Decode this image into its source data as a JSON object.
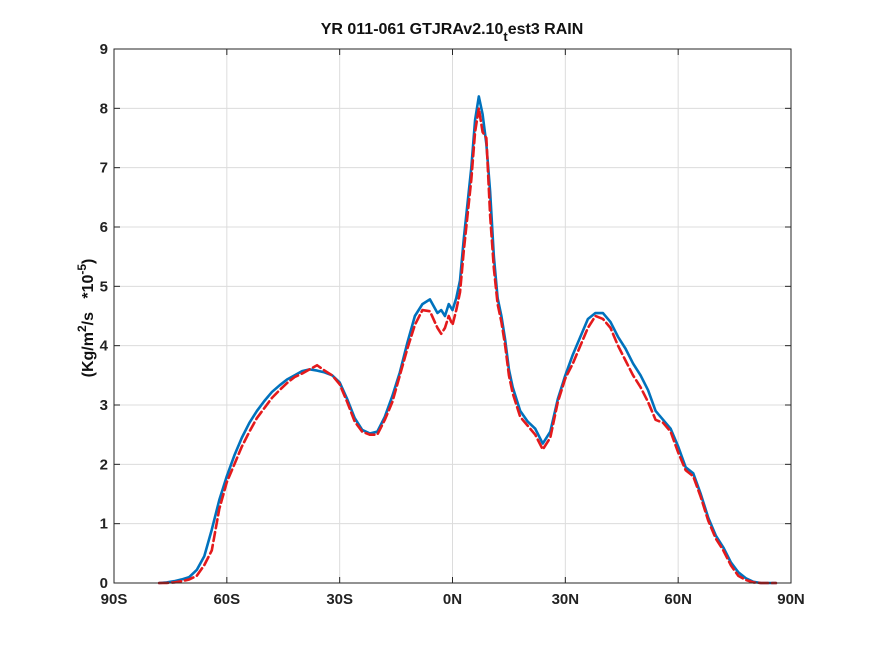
{
  "chart_data": {
    "type": "line",
    "title_parts": {
      "main": "YR 011-061 GTJRAv2.10",
      "sub": "t",
      "tail": "est3 RAIN"
    },
    "ylabel_parts": {
      "pre": "(Kg/m",
      "sup1": "2",
      "mid": "/s   *10",
      "sup2": "-5",
      "post": ")"
    },
    "xlabel": "",
    "xlim": [
      -90,
      90
    ],
    "ylim": [
      0,
      9
    ],
    "x_ticks": [
      -90,
      -60,
      -30,
      0,
      30,
      60,
      90
    ],
    "x_tick_labels": [
      "90S",
      "60S",
      "30S",
      "0N",
      "30N",
      "60N",
      "90N"
    ],
    "y_ticks": [
      0,
      1,
      2,
      3,
      4,
      5,
      6,
      7,
      8,
      9
    ],
    "y_tick_labels": [
      "0",
      "1",
      "2",
      "3",
      "4",
      "5",
      "6",
      "7",
      "8",
      "9"
    ],
    "grid": true,
    "series": [
      {
        "color": "#0072BD",
        "style": "solid",
        "x": [
          -78,
          -76,
          -74,
          -72,
          -70,
          -68,
          -66,
          -64,
          -62,
          -60,
          -58,
          -56,
          -54,
          -52,
          -50,
          -48,
          -46,
          -44,
          -42,
          -40,
          -38,
          -36,
          -34,
          -32,
          -30,
          -28,
          -26,
          -24,
          -22,
          -20,
          -18,
          -16,
          -14,
          -12,
          -10,
          -8,
          -6,
          -4,
          -3,
          -2,
          -1,
          0,
          1,
          2,
          3,
          4,
          5,
          6,
          7,
          8,
          9,
          10,
          11,
          12,
          13,
          14,
          15,
          16,
          18,
          20,
          22,
          24,
          26,
          28,
          30,
          32,
          34,
          36,
          38,
          40,
          42,
          44,
          46,
          48,
          50,
          52,
          54,
          56,
          58,
          60,
          62,
          64,
          66,
          68,
          70,
          72,
          74,
          76,
          78,
          80,
          82,
          84,
          86
        ],
        "y": [
          0.0,
          0.01,
          0.03,
          0.06,
          0.1,
          0.22,
          0.45,
          0.9,
          1.4,
          1.8,
          2.15,
          2.45,
          2.7,
          2.9,
          3.07,
          3.22,
          3.33,
          3.43,
          3.5,
          3.57,
          3.6,
          3.58,
          3.55,
          3.5,
          3.38,
          3.1,
          2.78,
          2.58,
          2.52,
          2.55,
          2.8,
          3.15,
          3.55,
          4.05,
          4.5,
          4.7,
          4.78,
          4.55,
          4.6,
          4.5,
          4.7,
          4.6,
          4.8,
          5.1,
          5.8,
          6.4,
          7.0,
          7.8,
          8.2,
          7.9,
          7.4,
          6.6,
          5.5,
          4.8,
          4.5,
          4.1,
          3.6,
          3.3,
          2.9,
          2.72,
          2.6,
          2.35,
          2.55,
          3.1,
          3.5,
          3.85,
          4.15,
          4.45,
          4.55,
          4.55,
          4.4,
          4.15,
          3.95,
          3.7,
          3.5,
          3.25,
          2.9,
          2.75,
          2.6,
          2.3,
          1.95,
          1.85,
          1.5,
          1.1,
          0.8,
          0.6,
          0.35,
          0.18,
          0.08,
          0.02,
          0.0,
          0.0,
          0.0
        ]
      },
      {
        "color": "#E41A1C",
        "style": "dashed",
        "x": [
          -78,
          -76,
          -74,
          -72,
          -70,
          -68,
          -66,
          -64,
          -62,
          -60,
          -58,
          -56,
          -54,
          -52,
          -50,
          -48,
          -46,
          -44,
          -42,
          -40,
          -38,
          -36,
          -34,
          -32,
          -30,
          -28,
          -26,
          -24,
          -22,
          -20,
          -18,
          -16,
          -14,
          -12,
          -10,
          -8,
          -6,
          -4,
          -3,
          -2,
          -1,
          0,
          1,
          2,
          3,
          4,
          5,
          6,
          7,
          8,
          9,
          10,
          11,
          12,
          13,
          14,
          15,
          16,
          18,
          20,
          22,
          24,
          26,
          28,
          30,
          32,
          34,
          36,
          38,
          40,
          42,
          44,
          46,
          48,
          50,
          52,
          54,
          56,
          58,
          60,
          62,
          64,
          66,
          68,
          70,
          72,
          74,
          76,
          78,
          80,
          82,
          84,
          86
        ],
        "y": [
          0.0,
          0.0,
          0.01,
          0.03,
          0.06,
          0.12,
          0.3,
          0.55,
          1.25,
          1.7,
          2.0,
          2.3,
          2.55,
          2.78,
          2.95,
          3.12,
          3.25,
          3.37,
          3.47,
          3.53,
          3.6,
          3.67,
          3.58,
          3.5,
          3.35,
          3.05,
          2.72,
          2.55,
          2.5,
          2.5,
          2.75,
          3.05,
          3.5,
          3.95,
          4.35,
          4.6,
          4.58,
          4.3,
          4.2,
          4.3,
          4.5,
          4.35,
          4.6,
          4.9,
          5.6,
          6.2,
          6.8,
          7.6,
          8.0,
          7.6,
          7.5,
          6.2,
          5.3,
          4.7,
          4.4,
          4.0,
          3.5,
          3.2,
          2.8,
          2.65,
          2.5,
          2.25,
          2.45,
          3.05,
          3.45,
          3.7,
          4.0,
          4.3,
          4.5,
          4.45,
          4.3,
          4.0,
          3.75,
          3.5,
          3.3,
          3.05,
          2.75,
          2.7,
          2.55,
          2.2,
          1.9,
          1.8,
          1.45,
          1.05,
          0.75,
          0.55,
          0.3,
          0.12,
          0.05,
          0.01,
          0.0,
          0.0,
          0.0
        ]
      }
    ]
  }
}
